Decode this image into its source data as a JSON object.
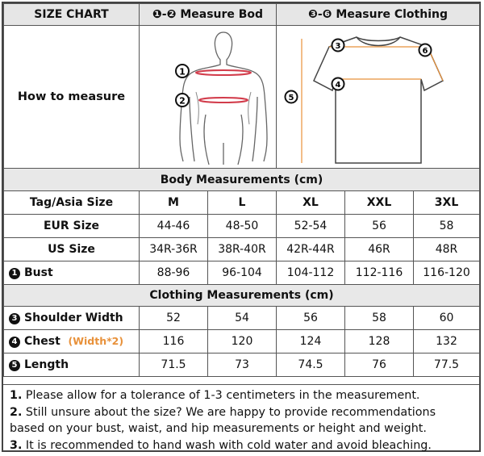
{
  "header": {
    "title": "SIZE CHART",
    "body_col": "❶-❷ Measure Bod",
    "clothing_col": "❸-❻ Measure Clothing"
  },
  "how_to_measure": "How to measure",
  "diagram": {
    "body_labels": [
      "1",
      "2"
    ],
    "shirt_labels": [
      "3",
      "4",
      "5",
      "6"
    ]
  },
  "body_section": "Body Measurements (cm)",
  "clothing_section": "Clothing Measurements  (cm)",
  "sizes": [
    "M",
    "L",
    "XL",
    "XXL",
    "3XL"
  ],
  "rows": {
    "tag": {
      "label": "Tag/Asia Size"
    },
    "eur": {
      "label": "EUR Size",
      "values": [
        "44-46",
        "48-50",
        "52-54",
        "56",
        "58"
      ]
    },
    "us": {
      "label": "US Size",
      "values": [
        "34R-36R",
        "38R-40R",
        "42R-44R",
        "46R",
        "48R"
      ]
    },
    "bust": {
      "num": "1",
      "label": "Bust",
      "values": [
        "88-96",
        "96-104",
        "104-112",
        "112-116",
        "116-120"
      ]
    },
    "shoulder": {
      "num": "3",
      "label": "Shoulder Width",
      "values": [
        "52",
        "54",
        "56",
        "58",
        "60"
      ]
    },
    "chest": {
      "num": "4",
      "label": "Chest",
      "note": "(Width*2)",
      "values": [
        "116",
        "120",
        "124",
        "128",
        "132"
      ]
    },
    "length": {
      "num": "5",
      "label": "Length",
      "values": [
        "71.5",
        "73",
        "74.5",
        "76",
        "77.5"
      ]
    }
  },
  "notes": [
    {
      "num": "1.",
      "text": " Please allow for a tolerance of 1-3 centimeters in the measurement."
    },
    {
      "num": "2.",
      "text": " Still unsure about the size? We are happy to provide recommendations based on your bust, waist, and hip measurements or height and weight."
    },
    {
      "num": "3.",
      "text": " It is recommended to hand wash with cold water and avoid bleaching."
    }
  ],
  "colors": {
    "header_bg": "#e6e6e6",
    "accent_orange": "#e8913a",
    "measure_red": "#d23c4b"
  }
}
